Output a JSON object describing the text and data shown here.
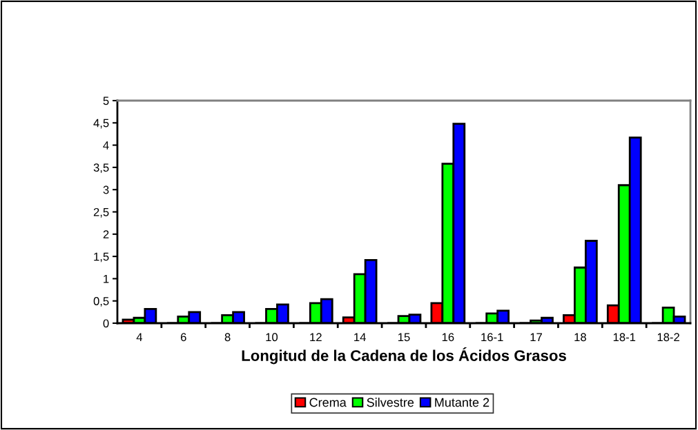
{
  "chart_data": {
    "type": "bar",
    "xlabel": "Longitud de la Cadena de los Ácidos Grasos",
    "categories": [
      "4",
      "6",
      "8",
      "10",
      "12",
      "14",
      "15",
      "16",
      "16-1",
      "17",
      "18",
      "18-1",
      "18-2"
    ],
    "series": [
      {
        "name": "Crema",
        "color": "#ff0000",
        "values": [
          0.08,
          0,
          0,
          null,
          null,
          0.13,
          0,
          0.45,
          null,
          0,
          0.18,
          0.4,
          null
        ]
      },
      {
        "name": "Silvestre",
        "color": "#00ff00",
        "values": [
          0.12,
          0.15,
          0.18,
          0.32,
          0.45,
          1.1,
          0.16,
          3.58,
          0.22,
          0.06,
          1.25,
          3.1,
          0.35
        ]
      },
      {
        "name": "Mutante 2",
        "color": "#0000ff",
        "values": [
          0.32,
          0.25,
          0.25,
          0.42,
          0.54,
          1.42,
          0.19,
          4.48,
          0.28,
          0.12,
          1.85,
          4.17,
          0.15
        ]
      }
    ],
    "ylim": [
      0,
      5
    ],
    "yticks": [
      0,
      {
        "value": 0.5,
        "label": "0,5"
      },
      1,
      {
        "value": 1.5,
        "label": "1,5"
      },
      2,
      {
        "value": 2.5,
        "label": "2,5"
      },
      3,
      {
        "value": 3.5,
        "label": "3,5"
      },
      4,
      {
        "value": 4.5,
        "label": "4,5"
      },
      5
    ],
    "grid": false,
    "legend": "bottom"
  }
}
